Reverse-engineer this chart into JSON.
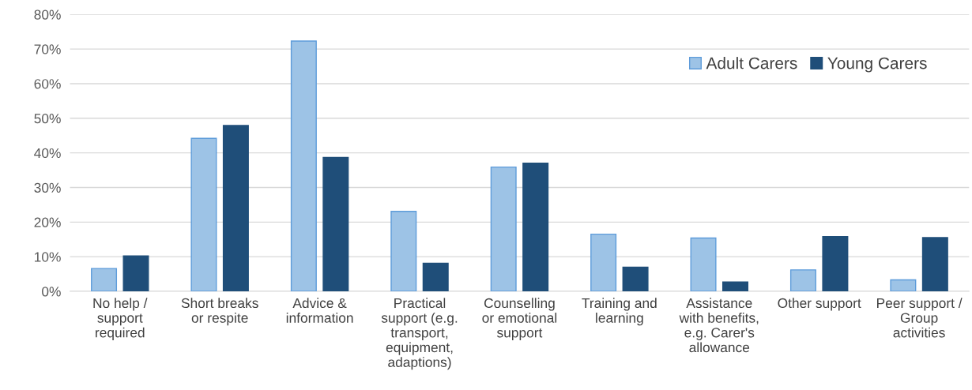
{
  "chart_data": {
    "type": "bar",
    "categories": [
      "No help /\nsupport\nrequired",
      "Short breaks\nor respite",
      "Advice &\ninformation",
      "Practical\nsupport (e.g.\ntransport,\nequipment,\nadaptions)",
      "Counselling\nor emotional\nsupport",
      "Training and\nlearning",
      "Assistance\nwith benefits,\ne.g. Carer's\nallowance",
      "Other support",
      "Peer support /\nGroup\nactivities"
    ],
    "series": [
      {
        "name": "Adult Carers",
        "color": "#9dc3e6",
        "values": [
          6.6,
          44.2,
          72.3,
          23.1,
          35.9,
          16.5,
          15.4,
          6.2,
          3.3
        ]
      },
      {
        "name": "Young Carers",
        "color": "#1f4e79",
        "values": [
          10.2,
          47.9,
          38.7,
          8.1,
          37.0,
          7.0,
          2.7,
          15.8,
          15.5
        ]
      }
    ],
    "ylim": [
      0,
      80
    ],
    "yticks": [
      {
        "value": 0,
        "label": "0%"
      },
      {
        "value": 10,
        "label": "10%"
      },
      {
        "value": 20,
        "label": "20%"
      },
      {
        "value": 30,
        "label": "30%"
      },
      {
        "value": 40,
        "label": "40%"
      },
      {
        "value": 50,
        "label": "50%"
      },
      {
        "value": 60,
        "label": "60%"
      },
      {
        "value": 70,
        "label": "70%"
      },
      {
        "value": 80,
        "label": "80%"
      }
    ],
    "grid": "y",
    "legend": "top right"
  }
}
